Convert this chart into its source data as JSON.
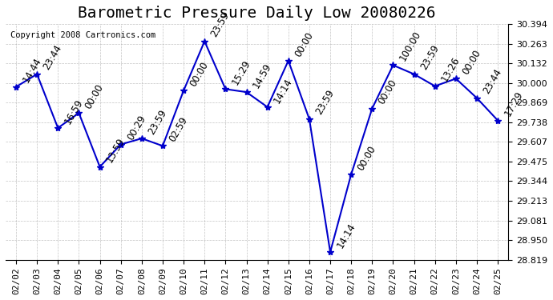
{
  "title": "Barometric Pressure Daily Low 20080226",
  "copyright": "Copyright 2008 Cartronics.com",
  "x_labels": [
    "02/02",
    "02/03",
    "02/04",
    "02/05",
    "02/06",
    "02/07",
    "02/08",
    "02/09",
    "02/10",
    "02/11",
    "02/12",
    "02/13",
    "02/14",
    "02/15",
    "02/16",
    "02/17",
    "02/18",
    "02/19",
    "02/20",
    "02/21",
    "02/22",
    "02/23",
    "02/24",
    "02/25"
  ],
  "y_values": [
    29.975,
    30.06,
    29.7,
    29.8,
    29.44,
    29.59,
    29.63,
    29.58,
    29.95,
    30.28,
    29.96,
    29.94,
    29.84,
    30.15,
    29.76,
    28.87,
    29.39,
    29.83,
    30.12,
    30.06,
    29.98,
    30.03,
    29.9,
    29.75
  ],
  "annotations": [
    "14:44",
    "23:44",
    "16:59",
    "00:00",
    "13:59",
    "00:29",
    "23:59",
    "02:59",
    "00:00",
    "23:59",
    "15:29",
    "14:59",
    "14:14",
    "00:00",
    "23:59",
    "14:14",
    "00:00",
    "00:00",
    "100:00",
    "23:59",
    "13:26",
    "00:00",
    "23:44",
    "17:29"
  ],
  "ylim_min": 28.819,
  "ylim_max": 30.394,
  "yticks": [
    28.819,
    28.95,
    29.081,
    29.213,
    29.344,
    29.475,
    29.607,
    29.738,
    29.869,
    30.0,
    30.132,
    30.263,
    30.394
  ],
  "line_color": "#0000cc",
  "marker_color": "#0000cc",
  "bg_color": "#ffffff",
  "grid_color": "#aaaaaa",
  "title_fontsize": 14,
  "annotation_fontsize": 8.5
}
